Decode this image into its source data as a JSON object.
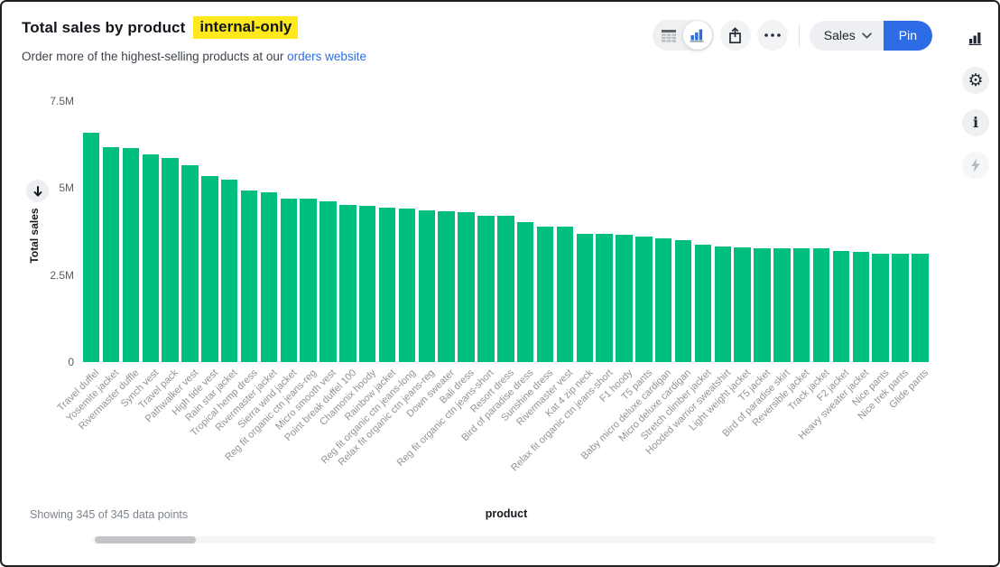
{
  "header": {
    "title": "Total sales by product",
    "title_highlight": "internal-only",
    "subtitle_prefix": "Order more of the highest-selling products at our ",
    "subtitle_link": "orders website"
  },
  "toolbar": {
    "view_toggle": {
      "options": [
        "table-view",
        "chart-view"
      ],
      "active": "chart-view"
    },
    "dataset_label": "Sales",
    "pin_label": "Pin"
  },
  "side_panel": {
    "icons": [
      "bar-chart",
      "settings-gear",
      "info",
      "lightning"
    ]
  },
  "status_bar": {
    "showing_text": "Showing 345 of 345 data points"
  },
  "colors": {
    "bar_green": "#00be7d",
    "pin_blue": "#2d6ce4",
    "link_blue": "#2b6fe6",
    "highlight_yellow": "#ffe81c",
    "chart_icon_blue": "#2e6ce0"
  },
  "chart_data": {
    "type": "bar",
    "title": "Total sales by product",
    "xlabel": "product",
    "ylabel": "Total sales",
    "unit": "millions",
    "ylim": [
      0,
      7.5
    ],
    "grid": false,
    "legend": "none",
    "sort": "descending",
    "y_ticks": [
      {
        "label": "7.5M",
        "value": 7.5
      },
      {
        "label": "5M",
        "value": 5
      },
      {
        "label": "2.5M",
        "value": 2.5
      },
      {
        "label": "0",
        "value": 0
      }
    ],
    "categories": [
      "Travel duffel",
      "Yosemite jacket",
      "Rivermaster duffle",
      "Synch vest",
      "Travel pack",
      "Pathwalker vest",
      "High tide vest",
      "Rain star jacket",
      "Tropical hemp dress",
      "Rivermaster jacket",
      "Sierra wind jacket",
      "Reg fit organic ctn jeans-reg",
      "Micro smooth vest",
      "Point break duffel 100",
      "Chamonix hoody",
      "Rainbow jacket",
      "Reg fit organic ctn jeans-long",
      "Relax fit organic ctn jeans-reg",
      "Down sweater",
      "Bali dress",
      "Reg fit organic ctn jeans-short",
      "Resort dress",
      "Bird of paradise dress",
      "Sunshine dress",
      "Rivermaster vest",
      "Kat 4 zip neck",
      "Relax fit organic ctn jeans-short",
      "F1 hoody",
      "T5 pants",
      "Baby micro deluxe cardigan",
      "Micro deluxe cardigan",
      "Stretch climber jacket",
      "Hooded warrior sweatshirt",
      "Light weight jacket",
      "T5 jacket",
      "Bird of paradise skirt",
      "Reversible jacket",
      "Track jacket",
      "F2 jacket",
      "Heavy sweater jacket",
      "Nice pants",
      "Nice trek pants",
      "Glide pants"
    ],
    "values": [
      6.6,
      6.18,
      6.14,
      5.97,
      5.87,
      5.67,
      5.34,
      5.25,
      4.92,
      4.89,
      4.71,
      4.69,
      4.63,
      4.52,
      4.49,
      4.45,
      4.4,
      4.37,
      4.34,
      4.31,
      4.21,
      4.2,
      4.03,
      3.88,
      3.88,
      3.69,
      3.69,
      3.67,
      3.61,
      3.56,
      3.5,
      3.37,
      3.33,
      3.3,
      3.28,
      3.26,
      3.26,
      3.26,
      3.2,
      3.17,
      3.11,
      3.11,
      3.11
    ]
  }
}
